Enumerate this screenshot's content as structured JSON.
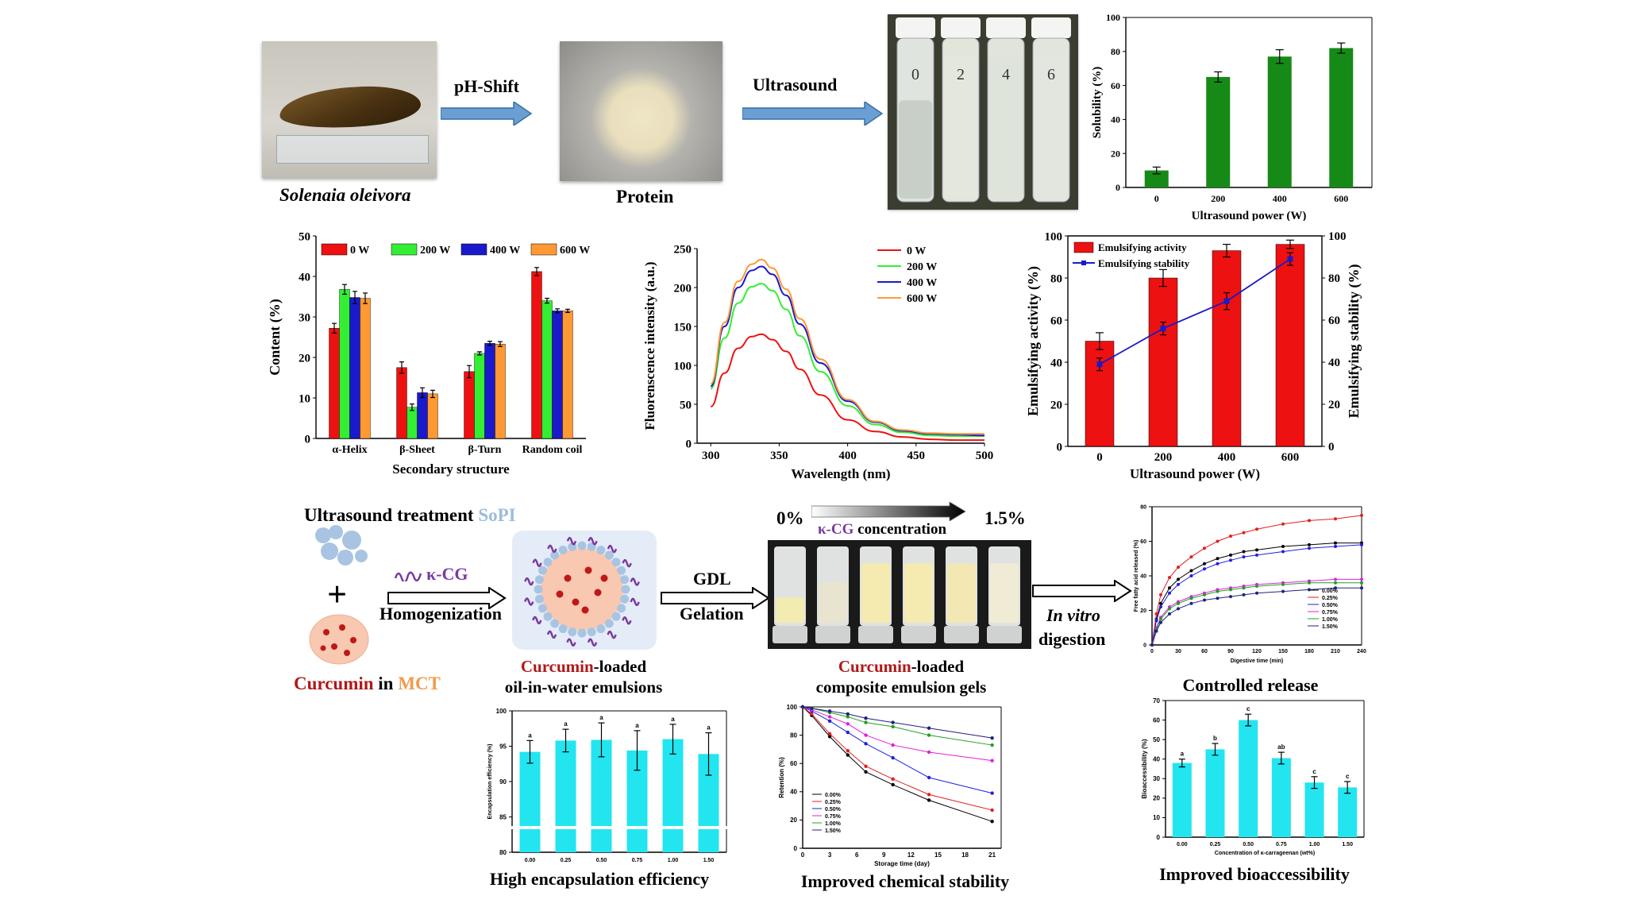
{
  "row1": {
    "species": "Solenaia oleivora",
    "step1": "pH-Shift",
    "protein": "Protein",
    "step2": "Ultrasound",
    "vial_labels": [
      "0",
      "2",
      "4",
      "6"
    ]
  },
  "row3": {
    "title_prefix": "Ultrasound treatment ",
    "title_sopi": "SoPI",
    "kcg": "κ-CG",
    "homogenization": "Homogenization",
    "curcumin": "Curcumin",
    "in_word": " in ",
    "mct": "MCT",
    "emulsion_suffix": "-loaded",
    "emulsion_line2": "oil-in-water emulsions",
    "gdl": "GDL",
    "gelation": "Gelation",
    "conc_start": "0%",
    "conc_end": "1.5%",
    "conc_kcg": "κ-CG",
    "conc_word": " concentration",
    "gel_suffix": "-loaded",
    "gel_line2": "composite emulsion gels",
    "invitro": "In vitro",
    "digestion": "digestion"
  },
  "captions": {
    "controlled": "Controlled release",
    "encap": "High encapsulation efficiency",
    "stability": "Improved chemical stability",
    "bioacc": "Improved bioaccessibility"
  },
  "colors": {
    "green": "#168a16",
    "red": "#ee1111",
    "lime": "#33ee33",
    "blue": "#1a1acc",
    "orange": "#ff9933",
    "cyan": "#22e5f0",
    "arrow_blue": "#6a9fd4",
    "curcumin": "#b01818",
    "mct": "#f39a4a",
    "sopi": "#9dbcdc",
    "kcg": "#7a3aa0"
  },
  "chart_data": [
    {
      "id": "solubility",
      "type": "bar",
      "categories": [
        "0",
        "200",
        "400",
        "600"
      ],
      "values": [
        10,
        65,
        77,
        82
      ],
      "errors": [
        2,
        3,
        4,
        3
      ],
      "xlabel": "Ultrasound power (W)",
      "ylabel": "Solubility (%)",
      "ylim": [
        0,
        100
      ],
      "yticks": [
        "0",
        "20",
        "40",
        "60",
        "80",
        "100"
      ]
    },
    {
      "id": "secondary",
      "type": "bar",
      "categories": [
        "α-Helix",
        "β-Sheet",
        "β-Turn",
        "Random coil"
      ],
      "series": [
        {
          "name": "0 W",
          "values": [
            27.2,
            17.5,
            16.5,
            41.2
          ],
          "errors": [
            1.2,
            1.4,
            1.5,
            1.0
          ]
        },
        {
          "name": "200 W",
          "values": [
            36.8,
            7.7,
            21.0,
            34.0
          ],
          "errors": [
            1.2,
            0.8,
            0.4,
            0.6
          ]
        },
        {
          "name": "400 W",
          "values": [
            34.8,
            11.3,
            23.5,
            31.5
          ],
          "errors": [
            1.5,
            1.2,
            0.5,
            0.5
          ]
        },
        {
          "name": "600 W",
          "values": [
            34.6,
            11.0,
            23.3,
            31.5
          ],
          "errors": [
            1.3,
            0.9,
            0.6,
            0.4
          ]
        }
      ],
      "xlabel": "Secondary structure",
      "ylabel": "Content (%)",
      "ylim": [
        0,
        50
      ],
      "yticks": [
        "0",
        "10",
        "20",
        "30",
        "40",
        "50"
      ]
    },
    {
      "id": "fluorescence",
      "type": "line",
      "x": [
        300,
        310,
        320,
        330,
        337,
        345,
        355,
        365,
        380,
        400,
        420,
        440,
        460,
        480,
        500
      ],
      "series": [
        {
          "name": "0 W",
          "values": [
            47,
            90,
            122,
            137,
            140,
            133,
            118,
            95,
            62,
            30,
            15,
            8,
            5,
            4,
            4
          ]
        },
        {
          "name": "200 W",
          "values": [
            70,
            135,
            180,
            201,
            205,
            196,
            172,
            138,
            92,
            48,
            24,
            14,
            10,
            9,
            9
          ]
        },
        {
          "name": "400 W",
          "values": [
            73,
            150,
            200,
            222,
            227,
            217,
            190,
            153,
            103,
            54,
            27,
            16,
            12,
            11,
            10
          ]
        },
        {
          "name": "600 W",
          "values": [
            76,
            155,
            208,
            230,
            236,
            225,
            198,
            160,
            108,
            56,
            28,
            17,
            13,
            12,
            12
          ]
        }
      ],
      "xlabel": "Wavelength (nm)",
      "ylabel": "Fluorenscence intensity (a.u.)",
      "xlim": [
        290,
        500
      ],
      "ylim": [
        0,
        250
      ],
      "xticks": [
        "300",
        "350",
        "400",
        "450",
        "500"
      ],
      "yticks": [
        "0",
        "50",
        "100",
        "150",
        "200",
        "250"
      ]
    },
    {
      "id": "emulsifying",
      "type": "bar",
      "categories": [
        "0",
        "200",
        "400",
        "600"
      ],
      "series": [
        {
          "name": "Emulsifying activity",
          "values": [
            50,
            80,
            93,
            96
          ],
          "errors": [
            4,
            4,
            3,
            2
          ]
        },
        {
          "name": "Emulsifying stability",
          "values": [
            39,
            56,
            69,
            89
          ],
          "errors": [
            3,
            3,
            4,
            3
          ]
        }
      ],
      "xlabel": "Ultrasound power (W)",
      "ylabel": "Emulsifying activity (%)",
      "y2label": "Emulsifying stability (%)",
      "ylim": [
        0,
        100
      ],
      "yticks": [
        "0",
        "20",
        "40",
        "60",
        "80",
        "100"
      ]
    },
    {
      "id": "release",
      "type": "line",
      "x": [
        0,
        5,
        10,
        20,
        30,
        45,
        60,
        75,
        90,
        105,
        120,
        150,
        180,
        210,
        240
      ],
      "series": [
        {
          "name": "0.00%",
          "values": [
            0,
            15,
            24,
            33,
            38,
            43,
            47,
            50,
            52,
            54,
            55,
            57,
            58,
            59,
            59
          ]
        },
        {
          "name": "0.25%",
          "values": [
            0,
            18,
            29,
            39,
            45,
            51,
            56,
            60,
            63,
            65,
            67,
            70,
            72,
            73,
            75
          ]
        },
        {
          "name": "0.50%",
          "values": [
            0,
            14,
            22,
            30,
            35,
            40,
            44,
            47,
            49,
            51,
            52,
            54,
            56,
            57,
            58
          ]
        },
        {
          "name": "0.75%",
          "values": [
            0,
            10,
            16,
            22,
            25,
            28,
            30,
            32,
            33,
            34,
            35,
            36,
            37,
            38,
            38
          ]
        },
        {
          "name": "1.00%",
          "values": [
            0,
            9,
            15,
            21,
            24,
            27,
            29,
            31,
            32,
            33,
            34,
            35,
            36,
            36,
            36
          ]
        },
        {
          "name": "1.50%",
          "values": [
            0,
            8,
            13,
            18,
            21,
            24,
            26,
            27,
            28,
            29,
            30,
            31,
            32,
            33,
            33
          ]
        }
      ],
      "xlabel": "Digestive time (min)",
      "ylabel": "Free fatty acid released (%)",
      "xlim": [
        0,
        240
      ],
      "ylim": [
        0,
        80
      ],
      "xticks": [
        "0",
        "30",
        "60",
        "90",
        "120",
        "150",
        "180",
        "210",
        "240"
      ],
      "yticks": [
        "0",
        "20",
        "40",
        "60",
        "80"
      ]
    },
    {
      "id": "encapsulation",
      "type": "bar",
      "categories": [
        "0.00",
        "0.25",
        "0.50",
        "0.75",
        "1.00",
        "1.50"
      ],
      "values": [
        94.2,
        95.8,
        95.9,
        94.4,
        96.0,
        93.9
      ],
      "errors": [
        1.6,
        1.6,
        2.4,
        2.8,
        2.1,
        3.0
      ],
      "letters": [
        "a",
        "a",
        "a",
        "a",
        "a",
        "a"
      ],
      "ylabel": "Encapsulation efficiency (%)",
      "ylim": [
        80,
        100
      ],
      "yticks": [
        "80",
        "85",
        "90",
        "95",
        "100"
      ]
    },
    {
      "id": "retention",
      "type": "line",
      "x": [
        0,
        1,
        3,
        5,
        7,
        10,
        14,
        21
      ],
      "series": [
        {
          "name": "0.00%",
          "values": [
            100,
            94,
            79,
            66,
            54,
            45,
            34,
            19
          ]
        },
        {
          "name": "0.25%",
          "values": [
            100,
            95,
            81,
            69,
            58,
            49,
            38,
            27
          ]
        },
        {
          "name": "0.50%",
          "values": [
            100,
            97,
            90,
            82,
            74,
            64,
            50,
            39
          ]
        },
        {
          "name": "0.75%",
          "values": [
            100,
            98,
            93,
            88,
            80,
            73,
            68,
            62
          ]
        },
        {
          "name": "1.00%",
          "values": [
            100,
            99,
            96,
            93,
            89,
            86,
            80,
            73
          ]
        },
        {
          "name": "1.50%",
          "values": [
            100,
            99,
            97,
            95,
            92,
            89,
            85,
            78
          ]
        }
      ],
      "xlabel": "Storage time (day)",
      "ylabel": "Retention (%)",
      "xlim": [
        0,
        22
      ],
      "ylim": [
        0,
        100
      ],
      "xticks": [
        "0",
        "3",
        "6",
        "9",
        "12",
        "15",
        "18",
        "21"
      ],
      "yticks": [
        "0",
        "20",
        "40",
        "60",
        "80",
        "100"
      ]
    },
    {
      "id": "bioaccessibility",
      "type": "bar",
      "categories": [
        "0.00",
        "0.25",
        "0.50",
        "0.75",
        "1.00",
        "1.50"
      ],
      "values": [
        38,
        45,
        60,
        40.5,
        28,
        25.5
      ],
      "errors": [
        2,
        3,
        3,
        3,
        3,
        3
      ],
      "letters": [
        "a",
        "b",
        "c",
        "ab",
        "c",
        "c"
      ],
      "xlabel": "Concentration of κ-carrageenan (wt%)",
      "ylabel": "Bioaccessibility (%)",
      "ylim": [
        0,
        70
      ],
      "yticks": [
        "0",
        "10",
        "20",
        "30",
        "40",
        "50",
        "60",
        "70"
      ]
    }
  ]
}
